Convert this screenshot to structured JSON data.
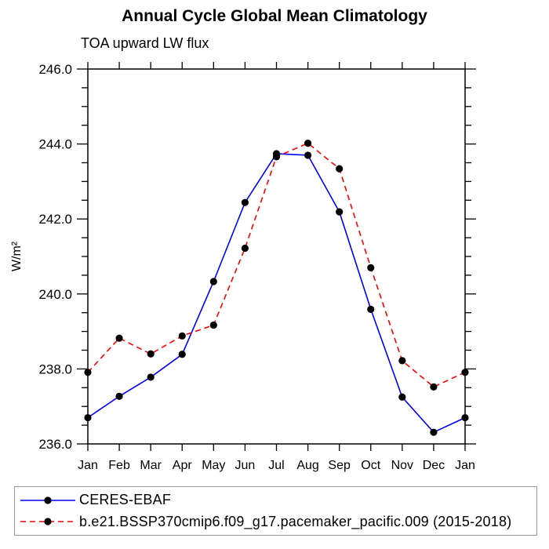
{
  "chart_data": {
    "type": "line",
    "title": "Annual Cycle Global Mean Climatology",
    "subtitle": "TOA upward LW flux",
    "ylabel": "W/m²",
    "xlabel": "",
    "categories": [
      "Jan",
      "Feb",
      "Mar",
      "Apr",
      "May",
      "Jun",
      "Jul",
      "Aug",
      "Sep",
      "Oct",
      "Nov",
      "Dec",
      "Jan"
    ],
    "ylim": [
      236.0,
      246.0
    ],
    "ytick_major_interval": 2.0,
    "ytick_minor_interval": 0.5,
    "ytick_labels": [
      "236.0",
      "238.0",
      "240.0",
      "242.0",
      "244.0",
      "246.0"
    ],
    "grid": false,
    "frame_color": "#000000",
    "tick_style": "outward",
    "series": [
      {
        "name": "CERES-EBAF",
        "color": "#0000ff",
        "line_style": "solid",
        "marker": "filled-circle",
        "marker_color": "#000000",
        "values": [
          236.7,
          237.27,
          237.78,
          238.39,
          240.33,
          242.44,
          243.74,
          243.7,
          242.19,
          239.59,
          237.25,
          236.31,
          236.7
        ]
      },
      {
        "name": "b.e21.BSSP370cmip6.f09_g17.pacemaker_pacific.009 (2015-2018)",
        "color": "#ff0000",
        "line_style": "dashed",
        "marker": "filled-circle",
        "marker_color": "#000000",
        "values": [
          237.91,
          238.82,
          238.4,
          238.88,
          239.17,
          241.22,
          243.66,
          244.02,
          243.34,
          240.7,
          238.22,
          237.52,
          237.91
        ]
      }
    ],
    "legend": {
      "position": "bottom-left-box",
      "border_color": "#9a9a9a"
    }
  }
}
